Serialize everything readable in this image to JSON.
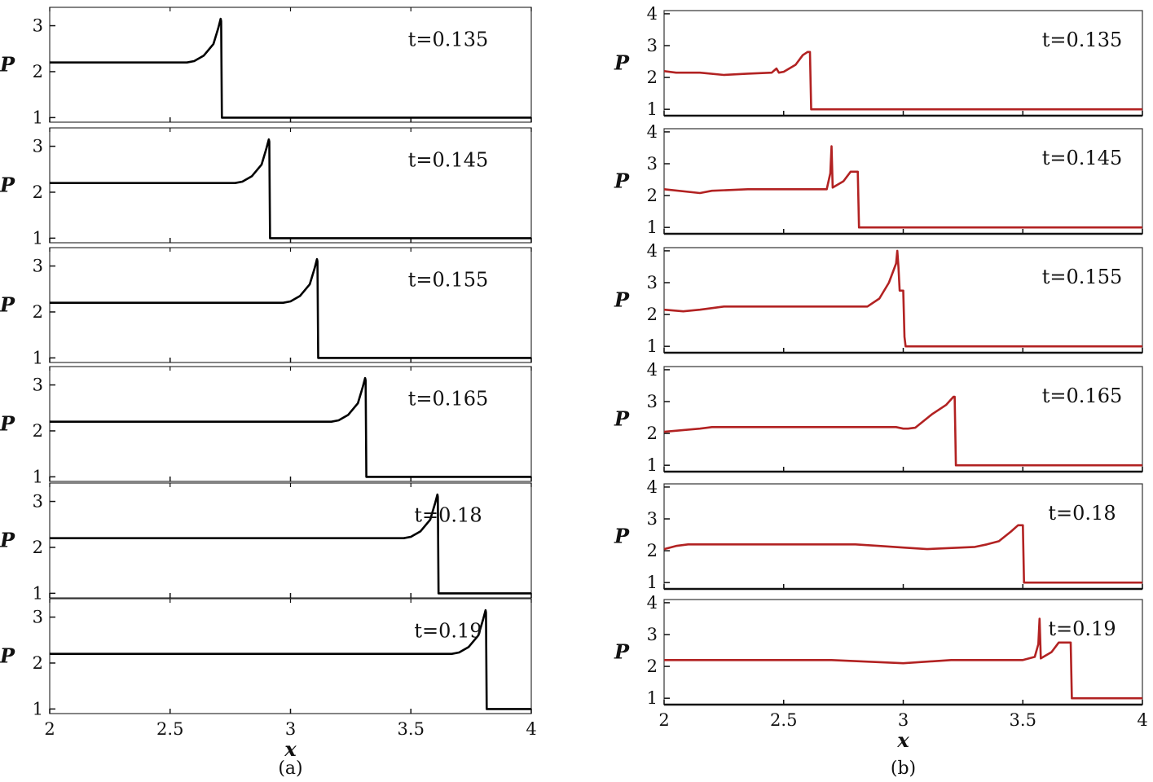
{
  "panels": [
    {
      "caption": "(a)",
      "xlabel": "x",
      "ylabel": "P",
      "xlim": [
        2,
        4
      ],
      "xticks": [
        "2",
        "2.5",
        "3",
        "3.5",
        "4"
      ],
      "line_color": "#000000",
      "subplots": [
        {
          "time_label": "t=0.135",
          "ylim": [
            0.9,
            3.4
          ],
          "yticks": [
            "1",
            "2",
            "3"
          ],
          "series": {
            "x": [
              2.0,
              2.57,
              2.6,
              2.64,
              2.68,
              2.7,
              2.71,
              2.712,
              2.715,
              4.0
            ],
            "y": [
              2.2,
              2.2,
              2.23,
              2.35,
              2.6,
              2.95,
              3.15,
              3.1,
              1.0,
              1.0
            ]
          }
        },
        {
          "time_label": "t=0.145",
          "ylim": [
            0.9,
            3.4
          ],
          "yticks": [
            "1",
            "2",
            "3"
          ],
          "series": {
            "x": [
              2.0,
              2.77,
              2.8,
              2.84,
              2.88,
              2.9,
              2.91,
              2.912,
              2.915,
              4.0
            ],
            "y": [
              2.2,
              2.2,
              2.23,
              2.35,
              2.6,
              2.95,
              3.15,
              3.1,
              1.0,
              1.0
            ]
          }
        },
        {
          "time_label": "t=0.155",
          "ylim": [
            0.9,
            3.4
          ],
          "yticks": [
            "1",
            "2",
            "3"
          ],
          "series": {
            "x": [
              2.0,
              2.97,
              3.0,
              3.04,
              3.08,
              3.1,
              3.11,
              3.112,
              3.115,
              4.0
            ],
            "y": [
              2.2,
              2.2,
              2.23,
              2.35,
              2.6,
              2.95,
              3.15,
              3.1,
              1.0,
              1.0
            ]
          }
        },
        {
          "time_label": "t=0.165",
          "ylim": [
            0.9,
            3.4
          ],
          "yticks": [
            "1",
            "2",
            "3"
          ],
          "series": {
            "x": [
              2.0,
              3.17,
              3.2,
              3.24,
              3.28,
              3.3,
              3.31,
              3.312,
              3.315,
              4.0
            ],
            "y": [
              2.2,
              2.2,
              2.23,
              2.35,
              2.6,
              2.95,
              3.15,
              3.1,
              1.0,
              1.0
            ]
          }
        },
        {
          "time_label": "t=0.18",
          "ylim": [
            0.9,
            3.4
          ],
          "yticks": [
            "1",
            "2",
            "3"
          ],
          "series": {
            "x": [
              2.0,
              3.47,
              3.5,
              3.54,
              3.58,
              3.6,
              3.61,
              3.612,
              3.615,
              4.0
            ],
            "y": [
              2.2,
              2.2,
              2.23,
              2.35,
              2.6,
              2.95,
              3.15,
              3.1,
              1.0,
              1.0
            ]
          }
        },
        {
          "time_label": "t=0.19",
          "ylim": [
            0.9,
            3.4
          ],
          "yticks": [
            "1",
            "2",
            "3"
          ],
          "series": {
            "x": [
              2.0,
              3.67,
              3.7,
              3.74,
              3.78,
              3.8,
              3.81,
              3.812,
              3.815,
              4.0
            ],
            "y": [
              2.2,
              2.2,
              2.23,
              2.35,
              2.6,
              2.95,
              3.15,
              3.1,
              1.0,
              1.0
            ]
          }
        }
      ]
    },
    {
      "caption": "(b)",
      "xlabel": "x",
      "ylabel": "P",
      "xlim": [
        2,
        4
      ],
      "xticks": [
        "2",
        "2.5",
        "3",
        "3.5",
        "4"
      ],
      "line_color": "#b22222",
      "subplots": [
        {
          "time_label": "t=0.135",
          "ylim": [
            0.8,
            4.1
          ],
          "yticks": [
            "1",
            "2",
            "3",
            "4"
          ],
          "series": {
            "x": [
              2.0,
              2.05,
              2.15,
              2.25,
              2.35,
              2.45,
              2.47,
              2.48,
              2.5,
              2.55,
              2.58,
              2.6,
              2.61,
              2.615,
              4.0
            ],
            "y": [
              2.2,
              2.15,
              2.15,
              2.08,
              2.12,
              2.15,
              2.28,
              2.15,
              2.18,
              2.4,
              2.7,
              2.8,
              2.8,
              1.0,
              1.0
            ]
          }
        },
        {
          "time_label": "t=0.145",
          "ylim": [
            0.8,
            4.1
          ],
          "yticks": [
            "1",
            "2",
            "3",
            "4"
          ],
          "series": {
            "x": [
              2.0,
              2.15,
              2.2,
              2.35,
              2.68,
              2.695,
              2.7,
              2.705,
              2.75,
              2.78,
              2.8,
              2.81,
              2.815,
              4.0
            ],
            "y": [
              2.2,
              2.08,
              2.15,
              2.2,
              2.2,
              2.7,
              3.55,
              2.25,
              2.45,
              2.75,
              2.75,
              2.75,
              1.0,
              1.0
            ]
          }
        },
        {
          "time_label": "t=0.155",
          "ylim": [
            0.8,
            4.1
          ],
          "yticks": [
            "1",
            "2",
            "3",
            "4"
          ],
          "series": {
            "x": [
              2.0,
              2.08,
              2.15,
              2.25,
              2.85,
              2.9,
              2.94,
              2.97,
              2.975,
              2.98,
              2.985,
              3.0,
              3.005,
              3.01,
              4.0
            ],
            "y": [
              2.15,
              2.1,
              2.15,
              2.25,
              2.25,
              2.5,
              3.0,
              3.6,
              4.0,
              3.5,
              2.75,
              2.75,
              1.3,
              1.0,
              1.0
            ]
          }
        },
        {
          "time_label": "t=0.165",
          "ylim": [
            0.8,
            4.1
          ],
          "yticks": [
            "1",
            "2",
            "3",
            "4"
          ],
          "series": {
            "x": [
              2.0,
              2.15,
              2.2,
              2.97,
              3.0,
              3.02,
              3.05,
              3.12,
              3.18,
              3.21,
              3.215,
              3.22,
              4.0
            ],
            "y": [
              2.05,
              2.15,
              2.2,
              2.2,
              2.15,
              2.15,
              2.18,
              2.6,
              2.9,
              3.15,
              3.15,
              1.0,
              1.0
            ]
          }
        },
        {
          "time_label": "t=0.18",
          "ylim": [
            0.8,
            4.1
          ],
          "yticks": [
            "1",
            "2",
            "3",
            "4"
          ],
          "series": {
            "x": [
              2.0,
              2.05,
              2.1,
              2.5,
              2.8,
              2.9,
              3.0,
              3.1,
              3.3,
              3.35,
              3.4,
              3.45,
              3.48,
              3.5,
              3.505,
              4.0
            ],
            "y": [
              2.05,
              2.15,
              2.2,
              2.2,
              2.2,
              2.15,
              2.1,
              2.05,
              2.12,
              2.2,
              2.3,
              2.6,
              2.8,
              2.8,
              1.0,
              1.0
            ]
          }
        },
        {
          "time_label": "t=0.19",
          "ylim": [
            0.8,
            4.1
          ],
          "yticks": [
            "1",
            "2",
            "3",
            "4"
          ],
          "series": {
            "x": [
              2.0,
              2.6,
              2.7,
              3.0,
              3.2,
              3.5,
              3.55,
              3.565,
              3.57,
              3.575,
              3.62,
              3.65,
              3.68,
              3.7,
              3.705,
              4.0
            ],
            "y": [
              2.2,
              2.2,
              2.2,
              2.1,
              2.2,
              2.2,
              2.3,
              2.7,
              3.5,
              2.25,
              2.45,
              2.75,
              2.75,
              2.75,
              1.0,
              1.0
            ]
          }
        }
      ]
    }
  ]
}
